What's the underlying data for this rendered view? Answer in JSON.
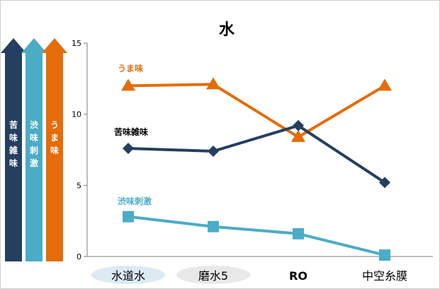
{
  "chart_data": {
    "type": "line",
    "title": "水",
    "categories": [
      "水道水",
      "磨水5",
      "RO",
      "中空糸膜"
    ],
    "ylim": [
      0,
      15
    ],
    "yticks": [
      0,
      5,
      10,
      15
    ],
    "grid": false,
    "legend": "none",
    "series": [
      {
        "name": "うま味",
        "values": [
          12.0,
          12.1,
          8.4,
          12.0
        ],
        "color": "#E46C0A",
        "marker": "triangle"
      },
      {
        "name": "苦味雑味",
        "values": [
          7.6,
          7.4,
          9.2,
          5.2
        ],
        "color": "#243F60",
        "marker": "diamond"
      },
      {
        "name": "渋味刺激",
        "values": [
          2.8,
          2.1,
          1.6,
          0.1
        ],
        "color": "#4BACC6",
        "marker": "square"
      }
    ],
    "side_arrows": [
      {
        "label": "苦味雑味",
        "color": "#243F60"
      },
      {
        "label": "渋味刺激",
        "color": "#4BACC6"
      },
      {
        "label": "うま味",
        "color": "#E46C0A"
      }
    ],
    "category_highlight": [
      true,
      true,
      false,
      false
    ]
  }
}
